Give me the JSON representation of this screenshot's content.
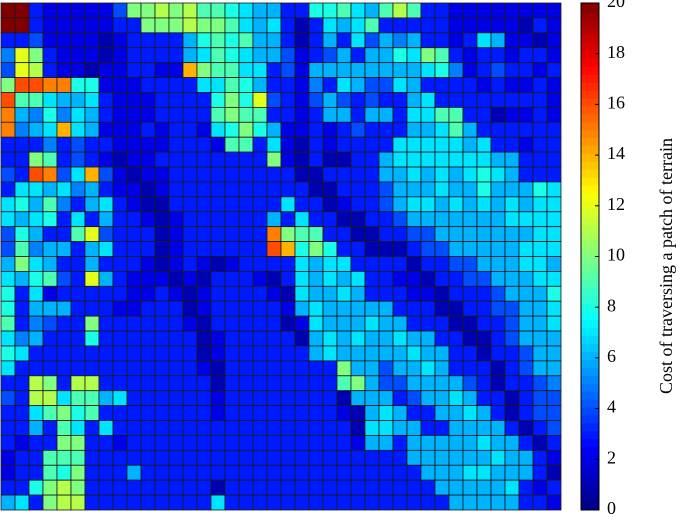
{
  "chart_data": {
    "type": "heatmap",
    "colormap": "jet",
    "colorbar_label": "Cost of traversing a patch of terrain",
    "clim": [
      0,
      20
    ],
    "cticks": [
      0,
      2,
      4,
      6,
      8,
      10,
      12,
      14,
      16,
      18,
      20
    ],
    "z": [
      [
        20,
        20,
        3,
        2,
        2,
        2,
        2,
        2,
        4,
        10,
        10,
        11,
        10,
        11,
        9,
        9,
        8,
        7,
        6,
        6,
        3,
        3,
        8,
        8,
        9,
        7,
        6,
        9,
        11,
        9,
        3,
        3,
        2,
        2,
        2,
        2,
        2,
        2,
        2,
        2
      ],
      [
        20,
        20,
        3,
        2,
        2,
        2,
        2,
        2,
        3,
        3,
        10,
        10,
        10,
        11,
        10,
        10,
        9,
        7,
        6,
        7,
        3,
        1,
        3,
        7,
        6,
        7,
        9,
        3,
        3,
        3,
        3,
        3,
        2,
        2,
        2,
        2,
        2,
        1,
        3,
        2
      ],
      [
        3,
        3,
        4,
        2,
        2,
        2,
        2,
        1,
        2,
        3,
        3,
        3,
        3,
        6,
        8,
        9,
        8,
        9,
        6,
        6,
        3,
        1,
        3,
        6,
        3,
        7,
        4,
        6,
        5,
        6,
        3,
        3,
        2,
        3,
        7,
        6,
        2,
        2,
        1,
        2
      ],
      [
        5,
        12,
        10,
        3,
        2,
        2,
        2,
        1,
        2,
        3,
        3,
        3,
        3,
        6,
        7,
        9,
        8,
        7,
        6,
        6,
        4,
        2,
        3,
        4,
        6,
        3,
        6,
        6,
        8,
        7,
        10,
        9,
        3,
        2,
        3,
        3,
        2,
        3,
        3,
        2
      ],
      [
        4,
        12,
        11,
        3,
        2,
        2,
        1,
        2,
        2,
        3,
        3,
        2,
        2,
        14,
        10,
        9,
        9,
        7,
        7,
        3,
        4,
        2,
        6,
        6,
        6,
        6,
        6,
        6,
        6,
        6,
        7,
        8,
        5,
        2,
        3,
        4,
        3,
        3,
        2,
        3
      ],
      [
        10,
        16,
        16,
        15,
        15,
        8,
        8,
        2,
        2,
        2,
        3,
        3,
        3,
        3,
        7,
        7,
        9,
        8,
        6,
        3,
        3,
        2,
        5,
        3,
        7,
        6,
        4,
        4,
        7,
        6,
        3,
        3,
        3,
        3,
        2,
        3,
        2,
        2,
        3,
        2
      ],
      [
        16,
        9,
        9,
        7,
        6,
        6,
        7,
        3,
        2,
        2,
        2,
        3,
        3,
        3,
        3,
        8,
        10,
        8,
        12,
        4,
        3,
        2,
        4,
        6,
        4,
        3,
        4,
        3,
        3,
        6,
        7,
        3,
        3,
        3,
        3,
        3,
        3,
        3,
        3,
        2
      ],
      [
        15,
        6,
        5,
        8,
        5,
        7,
        6,
        3,
        2,
        2,
        2,
        3,
        3,
        3,
        3,
        9,
        10,
        9,
        9,
        3,
        3,
        2,
        3,
        6,
        6,
        3,
        6,
        6,
        3,
        7,
        7,
        9,
        9,
        3,
        3,
        1,
        2,
        2,
        3,
        2
      ],
      [
        15,
        5,
        6,
        7,
        14,
        7,
        6,
        2,
        2,
        2,
        3,
        2,
        3,
        3,
        2,
        7,
        8,
        10,
        8,
        6,
        2,
        2,
        3,
        2,
        3,
        4,
        3,
        3,
        3,
        6,
        6,
        7,
        9,
        6,
        3,
        3,
        3,
        3,
        3,
        3
      ],
      [
        3,
        3,
        3,
        5,
        3,
        4,
        3,
        3,
        2,
        2,
        2,
        2,
        3,
        3,
        3,
        2,
        9,
        9,
        3,
        7,
        2,
        1,
        3,
        2,
        3,
        3,
        3,
        3,
        7,
        7,
        7,
        7,
        7,
        6,
        7,
        3,
        3,
        2,
        3,
        3
      ],
      [
        3,
        3,
        10,
        9,
        3,
        4,
        3,
        2,
        1,
        2,
        2,
        3,
        3,
        3,
        3,
        3,
        3,
        3,
        3,
        10,
        2,
        1,
        3,
        1,
        1,
        3,
        3,
        6,
        7,
        7,
        7,
        7,
        7,
        7,
        7,
        6,
        6,
        3,
        3,
        3
      ],
      [
        4,
        3,
        16,
        15,
        4,
        7,
        14,
        4,
        2,
        1,
        2,
        2,
        3,
        3,
        3,
        3,
        3,
        3,
        3,
        3,
        3,
        1,
        1,
        3,
        3,
        3,
        3,
        6,
        6,
        7,
        6,
        7,
        6,
        7,
        8,
        7,
        6,
        3,
        3,
        3
      ],
      [
        3,
        7,
        7,
        6,
        7,
        5,
        6,
        3,
        2,
        2,
        1,
        2,
        3,
        3,
        3,
        3,
        3,
        3,
        3,
        3,
        3,
        3,
        1,
        1,
        3,
        3,
        3,
        4,
        6,
        6,
        6,
        7,
        6,
        6,
        8,
        6,
        6,
        6,
        8,
        7
      ],
      [
        7,
        8,
        6,
        9,
        5,
        3,
        6,
        7,
        3,
        2,
        1,
        1,
        3,
        3,
        3,
        3,
        3,
        3,
        3,
        3,
        7,
        3,
        3,
        1,
        2,
        3,
        3,
        4,
        6,
        7,
        7,
        6,
        7,
        6,
        7,
        6,
        7,
        6,
        7,
        7
      ],
      [
        7,
        6,
        7,
        8,
        3,
        7,
        3,
        6,
        3,
        3,
        2,
        1,
        2,
        3,
        3,
        3,
        3,
        3,
        3,
        6,
        3,
        7,
        3,
        3,
        1,
        1,
        3,
        3,
        4,
        6,
        6,
        6,
        6,
        6,
        6,
        6,
        7,
        7,
        7,
        7
      ],
      [
        4,
        8,
        6,
        3,
        3,
        9,
        12,
        4,
        3,
        3,
        3,
        1,
        2,
        3,
        3,
        3,
        3,
        3,
        3,
        15,
        10,
        9,
        9,
        3,
        3,
        1,
        1,
        3,
        3,
        4,
        4,
        6,
        6,
        6,
        6,
        6,
        6,
        6,
        7,
        7
      ],
      [
        4,
        9,
        5,
        6,
        6,
        3,
        6,
        7,
        3,
        3,
        3,
        1,
        2,
        3,
        3,
        3,
        3,
        3,
        3,
        16,
        14,
        8,
        10,
        8,
        3,
        3,
        1,
        1,
        1,
        3,
        4,
        4,
        6,
        6,
        6,
        6,
        6,
        7,
        7,
        7
      ],
      [
        6,
        10,
        7,
        6,
        3,
        3,
        6,
        3,
        3,
        3,
        2,
        1,
        2,
        3,
        2,
        1,
        2,
        3,
        3,
        3,
        3,
        7,
        6,
        7,
        7,
        3,
        3,
        3,
        3,
        1,
        3,
        3,
        4,
        4,
        6,
        6,
        6,
        7,
        7,
        6
      ],
      [
        7,
        6,
        8,
        9,
        4,
        3,
        12,
        6,
        3,
        2,
        2,
        2,
        1,
        2,
        1,
        3,
        3,
        3,
        2,
        1,
        3,
        7,
        6,
        7,
        6,
        7,
        3,
        3,
        2,
        2,
        1,
        3,
        3,
        4,
        4,
        6,
        6,
        6,
        7,
        7
      ],
      [
        8,
        3,
        7,
        2,
        3,
        3,
        3,
        3,
        3,
        2,
        2,
        3,
        2,
        1,
        2,
        3,
        3,
        3,
        3,
        2,
        1,
        7,
        6,
        6,
        7,
        6,
        3,
        3,
        3,
        2,
        2,
        1,
        3,
        3,
        3,
        4,
        6,
        6,
        6,
        8
      ],
      [
        8,
        3,
        6,
        6,
        6,
        3,
        3,
        3,
        2,
        2,
        3,
        3,
        3,
        1,
        2,
        3,
        3,
        3,
        3,
        3,
        2,
        6,
        7,
        6,
        6,
        6,
        6,
        6,
        3,
        3,
        3,
        1,
        1,
        3,
        3,
        4,
        4,
        6,
        6,
        7
      ],
      [
        9,
        3,
        5,
        4,
        3,
        3,
        10,
        3,
        3,
        3,
        3,
        3,
        3,
        2,
        1,
        3,
        3,
        3,
        3,
        3,
        1,
        2,
        7,
        6,
        6,
        6,
        7,
        6,
        6,
        3,
        3,
        3,
        1,
        1,
        3,
        3,
        4,
        6,
        6,
        7
      ],
      [
        7,
        5,
        6,
        3,
        3,
        3,
        8,
        3,
        3,
        3,
        3,
        3,
        3,
        3,
        1,
        2,
        3,
        3,
        3,
        3,
        3,
        1,
        6,
        7,
        6,
        7,
        6,
        6,
        7,
        6,
        6,
        3,
        3,
        1,
        1,
        3,
        4,
        6,
        6,
        6
      ],
      [
        8,
        7,
        3,
        3,
        3,
        3,
        3,
        3,
        3,
        3,
        3,
        3,
        3,
        3,
        1,
        2,
        3,
        3,
        3,
        3,
        3,
        3,
        6,
        7,
        6,
        6,
        6,
        6,
        6,
        7,
        6,
        6,
        3,
        3,
        1,
        3,
        3,
        4,
        6,
        6
      ],
      [
        7,
        3,
        3,
        3,
        3,
        3,
        3,
        3,
        3,
        3,
        3,
        3,
        3,
        3,
        2,
        1,
        3,
        3,
        3,
        3,
        3,
        3,
        3,
        3,
        10,
        6,
        6,
        4,
        6,
        6,
        7,
        6,
        3,
        3,
        3,
        1,
        3,
        4,
        6,
        6
      ],
      [
        3,
        3,
        11,
        10,
        3,
        11,
        11,
        3,
        3,
        3,
        3,
        3,
        3,
        3,
        3,
        1,
        3,
        3,
        3,
        3,
        3,
        3,
        3,
        3,
        9,
        10,
        6,
        4,
        4,
        6,
        6,
        6,
        6,
        4,
        3,
        1,
        3,
        3,
        4,
        5
      ],
      [
        4,
        3,
        11,
        11,
        7,
        9,
        9,
        6,
        7,
        3,
        3,
        3,
        3,
        3,
        3,
        2,
        3,
        3,
        3,
        3,
        3,
        3,
        3,
        3,
        1,
        6,
        6,
        6,
        3,
        4,
        6,
        6,
        7,
        6,
        3,
        3,
        1,
        3,
        4,
        4
      ],
      [
        3,
        3,
        7,
        9,
        10,
        8,
        9,
        3,
        3,
        3,
        3,
        3,
        3,
        3,
        3,
        2,
        3,
        3,
        3,
        3,
        3,
        3,
        3,
        3,
        2,
        1,
        6,
        7,
        6,
        3,
        3,
        6,
        6,
        7,
        6,
        3,
        1,
        3,
        4,
        4
      ],
      [
        3,
        3,
        6,
        3,
        9,
        7,
        3,
        7,
        3,
        3,
        3,
        3,
        3,
        3,
        3,
        3,
        3,
        3,
        3,
        3,
        3,
        3,
        3,
        3,
        3,
        1,
        7,
        7,
        6,
        6,
        3,
        3,
        6,
        6,
        6,
        6,
        3,
        1,
        3,
        4
      ],
      [
        3,
        2,
        3,
        3,
        10,
        10,
        3,
        3,
        2,
        3,
        3,
        3,
        3,
        3,
        3,
        3,
        3,
        3,
        3,
        3,
        3,
        3,
        3,
        3,
        3,
        2,
        6,
        6,
        3,
        6,
        6,
        6,
        6,
        6,
        7,
        6,
        6,
        3,
        1,
        3
      ],
      [
        2,
        3,
        3,
        9,
        9,
        9,
        3,
        3,
        3,
        3,
        3,
        3,
        3,
        3,
        3,
        3,
        3,
        3,
        3,
        3,
        3,
        3,
        3,
        3,
        3,
        3,
        3,
        3,
        3,
        6,
        6,
        6,
        6,
        6,
        6,
        7,
        6,
        6,
        3,
        2
      ],
      [
        2,
        3,
        3,
        9,
        8,
        10,
        3,
        3,
        3,
        6,
        3,
        3,
        3,
        3,
        3,
        3,
        3,
        3,
        3,
        3,
        3,
        3,
        3,
        3,
        3,
        3,
        3,
        3,
        3,
        3,
        6,
        6,
        6,
        7,
        7,
        6,
        6,
        6,
        3,
        1
      ],
      [
        3,
        3,
        8,
        10,
        11,
        10,
        3,
        3,
        3,
        3,
        3,
        3,
        3,
        3,
        3,
        1,
        3,
        3,
        3,
        3,
        3,
        3,
        3,
        3,
        3,
        3,
        3,
        3,
        3,
        3,
        3,
        6,
        6,
        6,
        6,
        6,
        7,
        3,
        2,
        3
      ],
      [
        6,
        7,
        3,
        10,
        11,
        11,
        3,
        3,
        3,
        3,
        3,
        3,
        3,
        3,
        3,
        7,
        3,
        3,
        3,
        3,
        3,
        3,
        3,
        3,
        3,
        3,
        3,
        3,
        3,
        3,
        3,
        3,
        6,
        6,
        6,
        6,
        6,
        3,
        3,
        2
      ]
    ]
  }
}
